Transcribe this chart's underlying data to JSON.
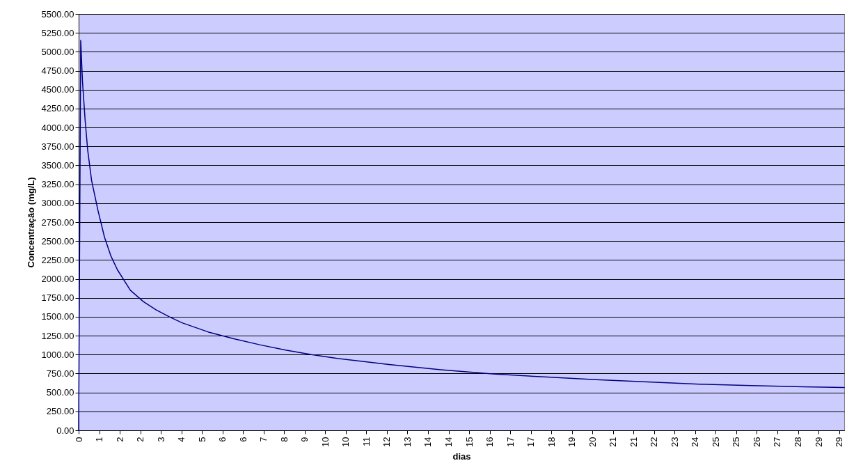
{
  "chart_data": {
    "type": "line",
    "xlabel": "dias",
    "ylabel": "Concentração (mg/L)",
    "grid": "y",
    "marker": "none",
    "line_style": "solid",
    "xlim": [
      0,
      29.6
    ],
    "ylim": [
      0,
      5500
    ],
    "xticks": [
      {
        "value": 0,
        "label": "0"
      },
      {
        "value": 0.795,
        "label": "1"
      },
      {
        "value": 1.589,
        "label": "2"
      },
      {
        "value": 2.384,
        "label": "2"
      },
      {
        "value": 3.178,
        "label": "3"
      },
      {
        "value": 3.973,
        "label": "4"
      },
      {
        "value": 4.768,
        "label": "5"
      },
      {
        "value": 5.562,
        "label": "6"
      },
      {
        "value": 6.357,
        "label": "6"
      },
      {
        "value": 7.151,
        "label": "7"
      },
      {
        "value": 7.946,
        "label": "8"
      },
      {
        "value": 8.741,
        "label": "9"
      },
      {
        "value": 9.535,
        "label": "10"
      },
      {
        "value": 10.33,
        "label": "10"
      },
      {
        "value": 11.124,
        "label": "11"
      },
      {
        "value": 11.919,
        "label": "12"
      },
      {
        "value": 12.714,
        "label": "13"
      },
      {
        "value": 13.508,
        "label": "14"
      },
      {
        "value": 14.303,
        "label": "14"
      },
      {
        "value": 15.097,
        "label": "15"
      },
      {
        "value": 15.892,
        "label": "16"
      },
      {
        "value": 16.686,
        "label": "17"
      },
      {
        "value": 17.481,
        "label": "17"
      },
      {
        "value": 18.276,
        "label": "18"
      },
      {
        "value": 19.07,
        "label": "19"
      },
      {
        "value": 19.865,
        "label": "20"
      },
      {
        "value": 20.659,
        "label": "21"
      },
      {
        "value": 21.454,
        "label": "21"
      },
      {
        "value": 22.249,
        "label": "22"
      },
      {
        "value": 23.043,
        "label": "23"
      },
      {
        "value": 23.838,
        "label": "24"
      },
      {
        "value": 24.632,
        "label": "25"
      },
      {
        "value": 25.427,
        "label": "25"
      },
      {
        "value": 26.222,
        "label": "26"
      },
      {
        "value": 27.016,
        "label": "27"
      },
      {
        "value": 27.811,
        "label": "28"
      },
      {
        "value": 28.605,
        "label": "29"
      },
      {
        "value": 29.4,
        "label": "29"
      }
    ],
    "yticks": [
      {
        "value": 0,
        "label": "0.00"
      },
      {
        "value": 250,
        "label": "250.00"
      },
      {
        "value": 500,
        "label": "500.00"
      },
      {
        "value": 750,
        "label": "750.00"
      },
      {
        "value": 1000,
        "label": "1000.00"
      },
      {
        "value": 1250,
        "label": "1250.00"
      },
      {
        "value": 1500,
        "label": "1500.00"
      },
      {
        "value": 1750,
        "label": "1750.00"
      },
      {
        "value": 2000,
        "label": "2000.00"
      },
      {
        "value": 2250,
        "label": "2250.00"
      },
      {
        "value": 2500,
        "label": "2500.00"
      },
      {
        "value": 2750,
        "label": "2750.00"
      },
      {
        "value": 3000,
        "label": "3000.00"
      },
      {
        "value": 3250,
        "label": "3250.00"
      },
      {
        "value": 3500,
        "label": "3500.00"
      },
      {
        "value": 3750,
        "label": "3750.00"
      },
      {
        "value": 4000,
        "label": "4000.00"
      },
      {
        "value": 4250,
        "label": "4250.00"
      },
      {
        "value": 4500,
        "label": "4500.00"
      },
      {
        "value": 4750,
        "label": "4750.00"
      },
      {
        "value": 5000,
        "label": "5000.00"
      },
      {
        "value": 5250,
        "label": "5250.00"
      },
      {
        "value": 5500,
        "label": "5500.00"
      }
    ],
    "x": [
      0,
      0.08,
      0.15,
      0.25,
      0.35,
      0.5,
      0.75,
      1.0,
      1.25,
      1.5,
      2,
      2.5,
      3,
      3.5,
      4,
      5,
      6,
      7,
      8,
      9,
      10,
      12,
      14,
      16,
      18,
      20,
      22,
      24,
      26,
      28,
      29.6
    ],
    "series": [
      {
        "color": "#000080",
        "values": [
          0,
          5150,
          4600,
          4100,
          3700,
          3300,
          2900,
          2550,
          2300,
          2120,
          1850,
          1700,
          1590,
          1500,
          1420,
          1300,
          1210,
          1130,
          1060,
          1000,
          950,
          870,
          800,
          745,
          705,
          670,
          640,
          610,
          590,
          575,
          565
        ]
      }
    ]
  }
}
